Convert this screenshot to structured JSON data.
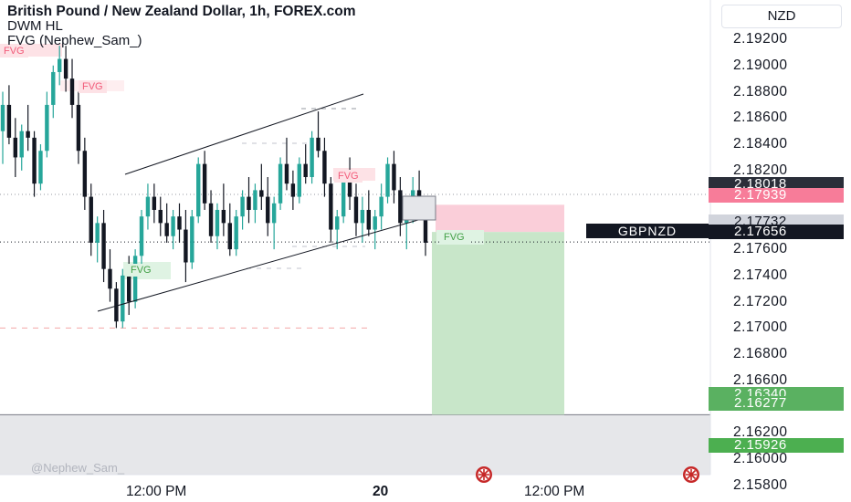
{
  "header": {
    "title": "British Pound / New Zealand Dollar, 1h, FOREX.com",
    "indicator1": "DWM HL",
    "indicator2": "FVG (Nephew_Sam_)"
  },
  "currency": "NZD",
  "watermark": "@Nephew_Sam_",
  "symbol_label": "GBPNZD",
  "price_badges": [
    {
      "label": "2.18018",
      "price": 2.18018,
      "color": "#2a2e39"
    },
    {
      "label": "2.17939",
      "price": 2.17939,
      "color": "#f77c99"
    },
    {
      "label": "2.17732",
      "price": 2.17732,
      "color": "#d1d4dc"
    },
    {
      "label": "2.17656",
      "price": 2.17656,
      "color": "#131722"
    },
    {
      "label": "2.16340",
      "price": 2.1634,
      "color": "#5ab161"
    },
    {
      "label": "2.16277",
      "price": 2.16277,
      "color": "#5ab161"
    },
    {
      "label": "2.15926",
      "price": 2.15926,
      "color": "#4caf50"
    }
  ],
  "fvg_labels": [
    {
      "text": "FVG",
      "kind": "bear"
    },
    {
      "text": "FVG",
      "kind": "bear"
    },
    {
      "text": "FVG",
      "kind": "bull"
    },
    {
      "text": "FVG",
      "kind": "bear"
    },
    {
      "text": "FVG",
      "kind": "bull"
    }
  ],
  "chart_data": {
    "type": "candlestick",
    "title": "British Pound / New Zealand Dollar, 1h, FOREX.com",
    "y_axis_unit": "NZD",
    "ylim": [
      2.1575,
      2.1935
    ],
    "y_ticks": [
      "2.15800",
      "2.16000",
      "2.16200",
      "2.16400",
      "2.16600",
      "2.16800",
      "2.17000",
      "2.17200",
      "2.17400",
      "2.17600",
      "2.17800",
      "2.18000",
      "2.18200",
      "2.18400",
      "2.18600",
      "2.18800",
      "2.19000",
      "2.19200"
    ],
    "x_ticks": [
      {
        "label": "12:00 PM",
        "bold": false
      },
      {
        "label": "20",
        "bold": true
      },
      {
        "label": "12:00 PM",
        "bold": false
      }
    ],
    "last_price": 2.17656,
    "trade_setup": {
      "entry": 2.17732,
      "stop": 2.17939,
      "target": 2.1634,
      "direction": "short"
    },
    "key_levels": {
      "upper_dashed": 2.18018,
      "lower_dashed": 2.17,
      "current": 2.17656
    },
    "candles": [
      [
        2.185,
        2.188,
        2.1825,
        2.187
      ],
      [
        2.187,
        2.1885,
        2.184,
        2.1845
      ],
      [
        2.1845,
        2.186,
        2.1815,
        2.183
      ],
      [
        2.183,
        2.1855,
        2.182,
        2.185
      ],
      [
        2.185,
        2.187,
        2.1835,
        2.1845
      ],
      [
        2.1845,
        2.185,
        2.18,
        2.181
      ],
      [
        2.181,
        2.184,
        2.1805,
        2.1835
      ],
      [
        2.1835,
        2.188,
        2.183,
        2.187
      ],
      [
        2.187,
        2.19,
        2.186,
        2.1895
      ],
      [
        2.1895,
        2.1915,
        2.1885,
        2.1905
      ],
      [
        2.1905,
        2.1915,
        2.188,
        2.189
      ],
      [
        2.189,
        2.1905,
        2.186,
        2.187
      ],
      [
        2.187,
        2.188,
        2.1825,
        2.1835
      ],
      [
        2.1835,
        2.1845,
        2.179,
        2.18
      ],
      [
        2.18,
        2.181,
        2.1755,
        2.1765
      ],
      [
        2.1765,
        2.1785,
        2.175,
        2.178
      ],
      [
        2.178,
        2.179,
        2.1735,
        2.1745
      ],
      [
        2.1745,
        2.176,
        2.172,
        2.173
      ],
      [
        2.173,
        2.1735,
        2.17,
        2.1705
      ],
      [
        2.1705,
        2.1745,
        2.17,
        2.174
      ],
      [
        2.174,
        2.1755,
        2.171,
        2.172
      ],
      [
        2.172,
        2.176,
        2.1715,
        2.1755
      ],
      [
        2.1755,
        2.179,
        2.1745,
        2.1785
      ],
      [
        2.1785,
        2.181,
        2.1775,
        2.18
      ],
      [
        2.18,
        2.181,
        2.178,
        2.179
      ],
      [
        2.179,
        2.18,
        2.177,
        2.178
      ],
      [
        2.178,
        2.1795,
        2.1765,
        2.177
      ],
      [
        2.177,
        2.179,
        2.176,
        2.1785
      ],
      [
        2.1785,
        2.1795,
        2.1765,
        2.1775
      ],
      [
        2.1775,
        2.179,
        2.1735,
        2.175
      ],
      [
        2.175,
        2.179,
        2.1745,
        2.1785
      ],
      [
        2.1785,
        2.183,
        2.178,
        2.1825
      ],
      [
        2.1825,
        2.1835,
        2.179,
        2.1795
      ],
      [
        2.1795,
        2.1805,
        2.1765,
        2.177
      ],
      [
        2.177,
        2.1795,
        2.176,
        2.179
      ],
      [
        2.179,
        2.181,
        2.177,
        2.178
      ],
      [
        2.178,
        2.1795,
        2.1755,
        2.176
      ],
      [
        2.176,
        2.179,
        2.1755,
        2.1785
      ],
      [
        2.1785,
        2.1805,
        2.1775,
        2.18
      ],
      [
        2.18,
        2.1815,
        2.178,
        2.179
      ],
      [
        2.179,
        2.181,
        2.178,
        2.1805
      ],
      [
        2.1805,
        2.1825,
        2.179,
        2.18
      ],
      [
        2.18,
        2.1815,
        2.177,
        2.178
      ],
      [
        2.178,
        2.18,
        2.176,
        2.1795
      ],
      [
        2.1795,
        2.183,
        2.179,
        2.1825
      ],
      [
        2.1825,
        2.1845,
        2.1805,
        2.181
      ],
      [
        2.181,
        2.182,
        2.179,
        2.18
      ],
      [
        2.18,
        2.183,
        2.1795,
        2.1825
      ],
      [
        2.1825,
        2.184,
        2.181,
        2.1815
      ],
      [
        2.1815,
        2.185,
        2.181,
        2.1845
      ],
      [
        2.1845,
        2.1865,
        2.183,
        2.1835
      ],
      [
        2.1835,
        2.1845,
        2.18,
        2.181
      ],
      [
        2.181,
        2.1815,
        2.1765,
        2.1775
      ],
      [
        2.1775,
        2.179,
        2.176,
        2.1785
      ],
      [
        2.1785,
        2.182,
        2.178,
        2.1815
      ],
      [
        2.1815,
        2.183,
        2.179,
        2.18
      ],
      [
        2.18,
        2.181,
        2.177,
        2.178
      ],
      [
        2.178,
        2.18,
        2.1765,
        2.179
      ],
      [
        2.179,
        2.1805,
        2.177,
        2.1775
      ],
      [
        2.1775,
        2.179,
        2.176,
        2.1785
      ],
      [
        2.1785,
        2.181,
        2.1775,
        2.18
      ],
      [
        2.18,
        2.183,
        2.1795,
        2.1825
      ],
      [
        2.1825,
        2.1835,
        2.1795,
        2.1805
      ],
      [
        2.1805,
        2.1815,
        2.177,
        2.178
      ],
      [
        2.178,
        2.1795,
        2.176,
        2.179
      ],
      [
        2.179,
        2.1815,
        2.178,
        2.1805
      ],
      [
        2.1805,
        2.182,
        2.1785,
        2.179
      ],
      [
        2.179,
        2.18,
        2.1755,
        2.1765
      ]
    ]
  }
}
